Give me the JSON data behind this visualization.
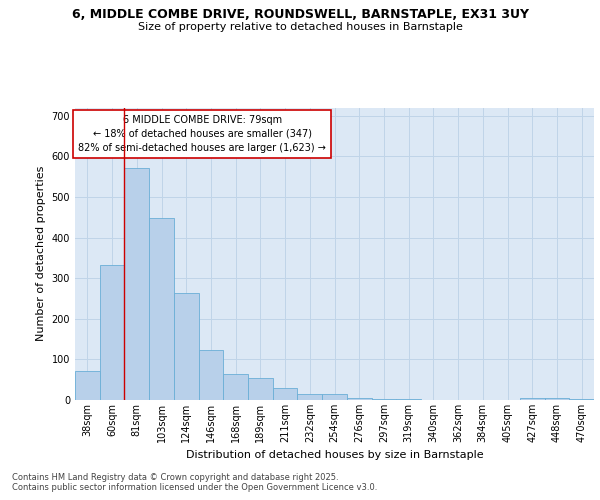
{
  "title": "6, MIDDLE COMBE DRIVE, ROUNDSWELL, BARNSTAPLE, EX31 3UY",
  "subtitle": "Size of property relative to detached houses in Barnstaple",
  "xlabel": "Distribution of detached houses by size in Barnstaple",
  "ylabel": "Number of detached properties",
  "categories": [
    "38sqm",
    "60sqm",
    "81sqm",
    "103sqm",
    "124sqm",
    "146sqm",
    "168sqm",
    "189sqm",
    "211sqm",
    "232sqm",
    "254sqm",
    "276sqm",
    "297sqm",
    "319sqm",
    "340sqm",
    "362sqm",
    "384sqm",
    "405sqm",
    "427sqm",
    "448sqm",
    "470sqm"
  ],
  "values": [
    72,
    333,
    570,
    447,
    263,
    124,
    63,
    53,
    30,
    16,
    14,
    6,
    2,
    2,
    0,
    0,
    0,
    0,
    5,
    4,
    3
  ],
  "bar_color": "#b8d0ea",
  "bar_edge_color": "#6aaed6",
  "grid_color": "#c0d4e8",
  "background_color": "#dce8f5",
  "vline_x_index": 2,
  "vline_color": "#cc0000",
  "annotation_text": "6 MIDDLE COMBE DRIVE: 79sqm\n← 18% of detached houses are smaller (347)\n82% of semi-detached houses are larger (1,623) →",
  "annotation_box_color": "#ffffff",
  "annotation_box_edge": "#cc0000",
  "footer": "Contains HM Land Registry data © Crown copyright and database right 2025.\nContains public sector information licensed under the Open Government Licence v3.0.",
  "ylim": [
    0,
    720
  ],
  "yticks": [
    0,
    100,
    200,
    300,
    400,
    500,
    600,
    700
  ],
  "title_fontsize": 9,
  "subtitle_fontsize": 8,
  "ylabel_fontsize": 8,
  "xlabel_fontsize": 8,
  "tick_fontsize": 7,
  "annotation_fontsize": 7,
  "footer_fontsize": 6
}
